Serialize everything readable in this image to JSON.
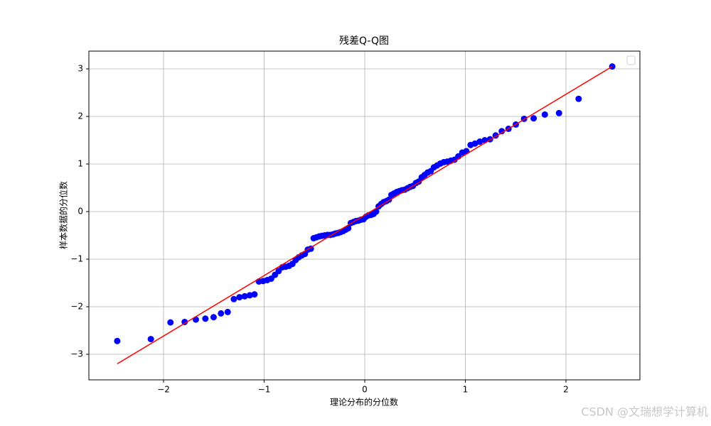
{
  "chart_data": {
    "type": "scatter",
    "title": "残差Q-Q图",
    "x_label": "理论分布的分位数",
    "y_label": "样本数据的分位数",
    "x": [
      -2.46,
      -2.126,
      -1.931,
      -1.79,
      -1.679,
      -1.584,
      -1.502,
      -1.429,
      -1.362,
      -1.301,
      -1.245,
      -1.193,
      -1.143,
      -1.096,
      -1.052,
      -1.01,
      -0.969,
      -0.93,
      -0.892,
      -0.856,
      -0.82,
      -0.786,
      -0.752,
      -0.719,
      -0.687,
      -0.656,
      -0.625,
      -0.595,
      -0.566,
      -0.536,
      -0.508,
      -0.479,
      -0.451,
      -0.424,
      -0.397,
      -0.37,
      -0.343,
      -0.317,
      -0.291,
      -0.265,
      -0.24,
      -0.214,
      -0.189,
      -0.164,
      -0.138,
      -0.113,
      -0.088,
      -0.062,
      -0.037,
      -0.012,
      0.012,
      0.037,
      0.062,
      0.088,
      0.113,
      0.138,
      0.164,
      0.189,
      0.214,
      0.24,
      0.265,
      0.291,
      0.317,
      0.343,
      0.37,
      0.397,
      0.424,
      0.451,
      0.479,
      0.508,
      0.536,
      0.566,
      0.595,
      0.625,
      0.656,
      0.687,
      0.719,
      0.752,
      0.786,
      0.82,
      0.856,
      0.892,
      0.93,
      0.969,
      1.01,
      1.052,
      1.096,
      1.143,
      1.193,
      1.245,
      1.301,
      1.362,
      1.429,
      1.502,
      1.584,
      1.679,
      1.79,
      1.931,
      2.126,
      2.46
    ],
    "series": [
      {
        "color": "#0000ff",
        "values": [
          -2.72,
          -2.68,
          -2.33,
          -2.32,
          -2.27,
          -2.25,
          -2.22,
          -2.14,
          -2.11,
          -1.84,
          -1.8,
          -1.78,
          -1.76,
          -1.74,
          -1.47,
          -1.46,
          -1.44,
          -1.41,
          -1.33,
          -1.25,
          -1.17,
          -1.16,
          -1.14,
          -1.1,
          -1.02,
          -0.96,
          -0.92,
          -0.89,
          -0.8,
          -0.78,
          -0.56,
          -0.54,
          -0.52,
          -0.51,
          -0.5,
          -0.49,
          -0.49,
          -0.48,
          -0.46,
          -0.45,
          -0.43,
          -0.41,
          -0.38,
          -0.35,
          -0.24,
          -0.22,
          -0.2,
          -0.19,
          -0.17,
          -0.16,
          -0.11,
          -0.08,
          -0.07,
          -0.05,
          0,
          0.11,
          0.16,
          0.2,
          0.22,
          0.25,
          0.35,
          0.38,
          0.41,
          0.43,
          0.45,
          0.46,
          0.49,
          0.52,
          0.54,
          0.6,
          0.63,
          0.72,
          0.77,
          0.82,
          0.85,
          0.93,
          0.97,
          1.01,
          1.04,
          1.05,
          1.07,
          1.09,
          1.16,
          1.24,
          1.27,
          1.4,
          1.43,
          1.47,
          1.5,
          1.52,
          1.6,
          1.69,
          1.74,
          1.83,
          1.95,
          1.96,
          2.04,
          2.07,
          2.37,
          3.05
        ]
      }
    ],
    "fit_line": {
      "color": "#ff0000",
      "x": [
        -2.46,
        2.46
      ],
      "y": [
        -3.2,
        3.05
      ]
    },
    "xlim": [
      -2.742,
      2.735
    ],
    "ylim": [
      -3.537,
      3.373
    ],
    "xticks": [
      {
        "value": -2,
        "label": "−2"
      },
      {
        "value": -1,
        "label": "−1"
      },
      0,
      1,
      2
    ],
    "yticks": [
      {
        "value": -3,
        "label": "−3"
      },
      {
        "value": -2,
        "label": "−2"
      },
      {
        "value": -1,
        "label": "−1"
      },
      0,
      1,
      2,
      3
    ],
    "grid": true,
    "watermark": "CSDN @文瑞想学计算机"
  }
}
